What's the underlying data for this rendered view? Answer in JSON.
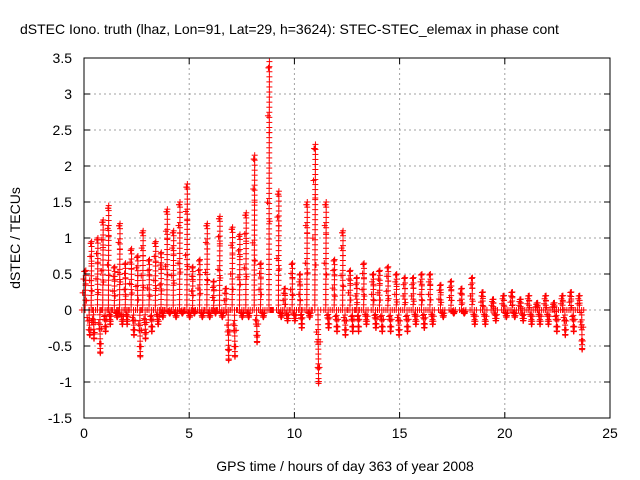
{
  "chart_data": {
    "type": "scatter",
    "title": "dSTEC Iono. truth (lhaz, Lon=91, Lat=29, h=3624): STEC-STEC_elemax in phase cont",
    "xlabel": "GPS time / hours of day 363 of year 2008",
    "ylabel": "dSTEC  / TECUs",
    "xlim": [
      0,
      25
    ],
    "ylim": [
      -1.5,
      3.5
    ],
    "xticks": [
      "0",
      "5",
      "10",
      "15",
      "20",
      "25"
    ],
    "xtick_values": [
      0,
      5,
      10,
      15,
      20,
      25
    ],
    "yticks": [
      "-1.5",
      "-1",
      "-0.5",
      "0",
      "0.5",
      "1",
      "1.5",
      "2",
      "2.5",
      "3",
      "3.5"
    ],
    "ytick_values": [
      -1.5,
      -1,
      -0.5,
      0,
      0.5,
      1,
      1.5,
      2,
      2.5,
      3,
      3.5
    ],
    "grid": true,
    "marker": "+",
    "marker_color": "#ff0000",
    "series": [
      {
        "name": "dSTEC",
        "arcs": [
          [
            0.15,
            0.25,
            0.55,
            -0.35
          ],
          [
            0.4,
            0.15,
            0.95,
            -0.4
          ],
          [
            0.7,
            0.15,
            1.0,
            -0.6
          ],
          [
            0.95,
            0.15,
            1.25,
            -0.3
          ],
          [
            1.2,
            0.1,
            1.45,
            -0.2
          ],
          [
            1.5,
            0.15,
            0.6,
            -0.1
          ],
          [
            1.75,
            0.15,
            1.2,
            -0.2
          ],
          [
            2.0,
            0.1,
            0.65,
            -0.2
          ],
          [
            2.3,
            0.15,
            0.85,
            -0.35
          ],
          [
            2.6,
            0.15,
            0.75,
            -0.65
          ],
          [
            2.85,
            0.15,
            1.1,
            -0.4
          ],
          [
            3.15,
            0.15,
            0.7,
            -0.3
          ],
          [
            3.45,
            0.15,
            0.95,
            -0.2
          ],
          [
            3.7,
            0.1,
            0.8,
            -0.1
          ],
          [
            4.0,
            0.15,
            1.4,
            -0.05
          ],
          [
            4.3,
            0.15,
            1.1,
            -0.1
          ],
          [
            4.6,
            0.15,
            1.5,
            -0.05
          ],
          [
            4.95,
            0.15,
            1.75,
            -0.1
          ],
          [
            5.2,
            0.1,
            0.6,
            -0.05
          ],
          [
            5.55,
            0.15,
            0.7,
            -0.1
          ],
          [
            5.9,
            0.15,
            1.2,
            -0.1
          ],
          [
            6.2,
            0.1,
            0.4,
            -0.05
          ],
          [
            6.5,
            0.15,
            1.3,
            -0.1
          ],
          [
            6.8,
            0.15,
            0.3,
            -0.7
          ],
          [
            7.1,
            0.15,
            1.15,
            -0.65
          ],
          [
            7.45,
            0.15,
            1.05,
            -0.1
          ],
          [
            7.75,
            0.15,
            1.35,
            -0.1
          ],
          [
            8.15,
            0.15,
            2.15,
            -0.45
          ],
          [
            8.45,
            0.15,
            0.65,
            -0.1
          ],
          [
            8.85,
            0.15,
            3.45,
            0.0
          ],
          [
            9.3,
            0.15,
            1.65,
            -0.1
          ],
          [
            9.6,
            0.15,
            0.3,
            -0.15
          ],
          [
            9.95,
            0.15,
            0.65,
            -0.15
          ],
          [
            10.3,
            0.1,
            0.5,
            -0.25
          ],
          [
            10.65,
            0.15,
            1.5,
            -0.1
          ],
          [
            11.05,
            0.2,
            2.3,
            -1.02
          ],
          [
            11.55,
            0.15,
            1.5,
            -0.25
          ],
          [
            11.95,
            0.15,
            0.7,
            -0.3
          ],
          [
            12.35,
            0.15,
            1.1,
            -0.35
          ],
          [
            12.7,
            0.15,
            0.55,
            -0.3
          ],
          [
            13.0,
            0.1,
            0.45,
            -0.3
          ],
          [
            13.35,
            0.15,
            0.65,
            -0.2
          ],
          [
            13.8,
            0.15,
            0.5,
            -0.25
          ],
          [
            14.1,
            0.15,
            0.55,
            -0.3
          ],
          [
            14.5,
            0.15,
            0.6,
            -0.3
          ],
          [
            14.9,
            0.15,
            0.5,
            -0.35
          ],
          [
            15.3,
            0.15,
            0.45,
            -0.3
          ],
          [
            15.7,
            0.15,
            0.45,
            -0.2
          ],
          [
            16.1,
            0.15,
            0.5,
            -0.25
          ],
          [
            16.5,
            0.15,
            0.5,
            -0.2
          ],
          [
            17.0,
            0.15,
            0.35,
            -0.1
          ],
          [
            17.5,
            0.15,
            0.4,
            -0.05
          ],
          [
            18.0,
            0.15,
            0.3,
            -0.05
          ],
          [
            18.5,
            0.15,
            0.45,
            -0.2
          ],
          [
            19.0,
            0.15,
            0.25,
            -0.2
          ],
          [
            19.5,
            0.15,
            0.15,
            -0.15
          ],
          [
            20.0,
            0.15,
            0.2,
            -0.1
          ],
          [
            20.4,
            0.15,
            0.25,
            -0.1
          ],
          [
            20.8,
            0.15,
            0.15,
            -0.15
          ],
          [
            21.2,
            0.15,
            0.2,
            -0.2
          ],
          [
            21.6,
            0.15,
            0.1,
            -0.2
          ],
          [
            22.0,
            0.15,
            0.2,
            -0.2
          ],
          [
            22.4,
            0.15,
            0.1,
            -0.3
          ],
          [
            22.8,
            0.15,
            0.2,
            -0.35
          ],
          [
            23.2,
            0.15,
            0.25,
            -0.3
          ],
          [
            23.6,
            0.15,
            0.2,
            -0.55
          ]
        ]
      }
    ]
  }
}
